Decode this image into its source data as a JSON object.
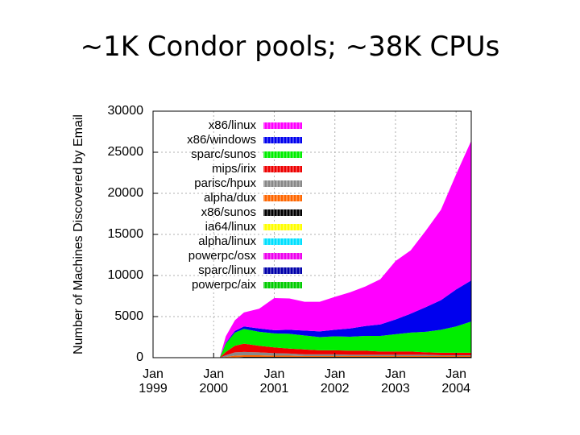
{
  "slide": {
    "title": "~1K Condor pools; ~38K CPUs"
  },
  "chart_data": {
    "type": "area",
    "stacked": true,
    "title": "",
    "xlabel": "",
    "ylabel": "Number of Machines Discovered by Email",
    "ylim": [
      0,
      30000
    ],
    "yticks": [
      0,
      5000,
      10000,
      15000,
      20000,
      25000,
      30000
    ],
    "xlim": [
      1999.0,
      2004.25
    ],
    "xticks": [
      {
        "value": 1999,
        "line1": "Jan",
        "line2": "1999"
      },
      {
        "value": 2000,
        "line1": "Jan",
        "line2": "2000"
      },
      {
        "value": 2001,
        "line1": "Jan",
        "line2": "2001"
      },
      {
        "value": 2002,
        "line1": "Jan",
        "line2": "2002"
      },
      {
        "value": 2003,
        "line1": "Jan",
        "line2": "2003"
      },
      {
        "value": 2004,
        "line1": "Jan",
        "line2": "2004"
      }
    ],
    "grid": true,
    "legend_position": "top-left",
    "x": [
      2000.1,
      2000.2,
      2000.35,
      2000.5,
      2000.75,
      2001.0,
      2001.25,
      2001.5,
      2001.75,
      2002.0,
      2002.25,
      2002.5,
      2002.75,
      2003.0,
      2003.25,
      2003.5,
      2003.75,
      2004.0,
      2004.25
    ],
    "series": [
      {
        "name": "powerpc/aix",
        "color": "#00cc00",
        "values": [
          0,
          0,
          0,
          0,
          0,
          0,
          0,
          0,
          0,
          0,
          0,
          0,
          0,
          0,
          0,
          0,
          0,
          0,
          0
        ]
      },
      {
        "name": "sparc/linux",
        "color": "#0000aa",
        "values": [
          0,
          0,
          0,
          0,
          0,
          0,
          0,
          0,
          0,
          0,
          0,
          0,
          0,
          0,
          0,
          0,
          0,
          0,
          0
        ]
      },
      {
        "name": "powerpc/osx",
        "color": "#ee00ee",
        "values": [
          0,
          0,
          0,
          0,
          0,
          0,
          0,
          0,
          0,
          0,
          0,
          0,
          0,
          0,
          0,
          0,
          0,
          0,
          0
        ]
      },
      {
        "name": "alpha/linux",
        "color": "#00e0ff",
        "values": [
          0,
          0,
          0,
          0,
          0,
          0,
          0,
          0,
          0,
          0,
          0,
          0,
          0,
          0,
          0,
          0,
          0,
          0,
          0
        ]
      },
      {
        "name": "ia64/linux",
        "color": "#ffff00",
        "values": [
          0,
          0,
          0,
          0,
          0,
          0,
          0,
          0,
          0,
          0,
          0,
          0,
          0,
          0,
          0,
          0,
          0,
          0,
          0
        ]
      },
      {
        "name": "x86/sunos",
        "color": "#000000",
        "values": [
          0,
          0,
          50,
          100,
          100,
          100,
          100,
          100,
          100,
          100,
          100,
          100,
          100,
          100,
          100,
          100,
          100,
          100,
          100
        ]
      },
      {
        "name": "alpha/dux",
        "color": "#ff6600",
        "values": [
          0,
          100,
          200,
          200,
          200,
          150,
          150,
          100,
          100,
          100,
          100,
          100,
          100,
          100,
          100,
          100,
          100,
          100,
          100
        ]
      },
      {
        "name": "parisc/hpux",
        "color": "#888888",
        "values": [
          0,
          200,
          400,
          400,
          350,
          300,
          250,
          200,
          200,
          200,
          150,
          150,
          150,
          150,
          150,
          150,
          100,
          100,
          100
        ]
      },
      {
        "name": "mips/irix",
        "color": "#ee0000",
        "values": [
          0,
          400,
          800,
          1000,
          800,
          700,
          600,
          600,
          500,
          500,
          500,
          500,
          400,
          400,
          400,
          300,
          300,
          300,
          300
        ]
      },
      {
        "name": "sparc/sunos",
        "color": "#00ee00",
        "values": [
          0,
          1000,
          1600,
          1800,
          1700,
          1700,
          1800,
          1700,
          1600,
          1700,
          1700,
          1800,
          1900,
          2100,
          2300,
          2500,
          2800,
          3200,
          3800
        ]
      },
      {
        "name": "x86/windows",
        "color": "#0000ee",
        "values": [
          0,
          100,
          200,
          300,
          400,
          400,
          500,
          600,
          700,
          800,
          1000,
          1200,
          1400,
          1800,
          2300,
          3000,
          3600,
          4500,
          5000
        ]
      },
      {
        "name": "x86/linux",
        "color": "#ff00ff",
        "values": [
          0,
          800,
          1300,
          1700,
          2400,
          3900,
          3800,
          3500,
          3600,
          4000,
          4400,
          4800,
          5500,
          7100,
          7700,
          9300,
          11000,
          14000,
          17000
        ]
      }
    ]
  }
}
